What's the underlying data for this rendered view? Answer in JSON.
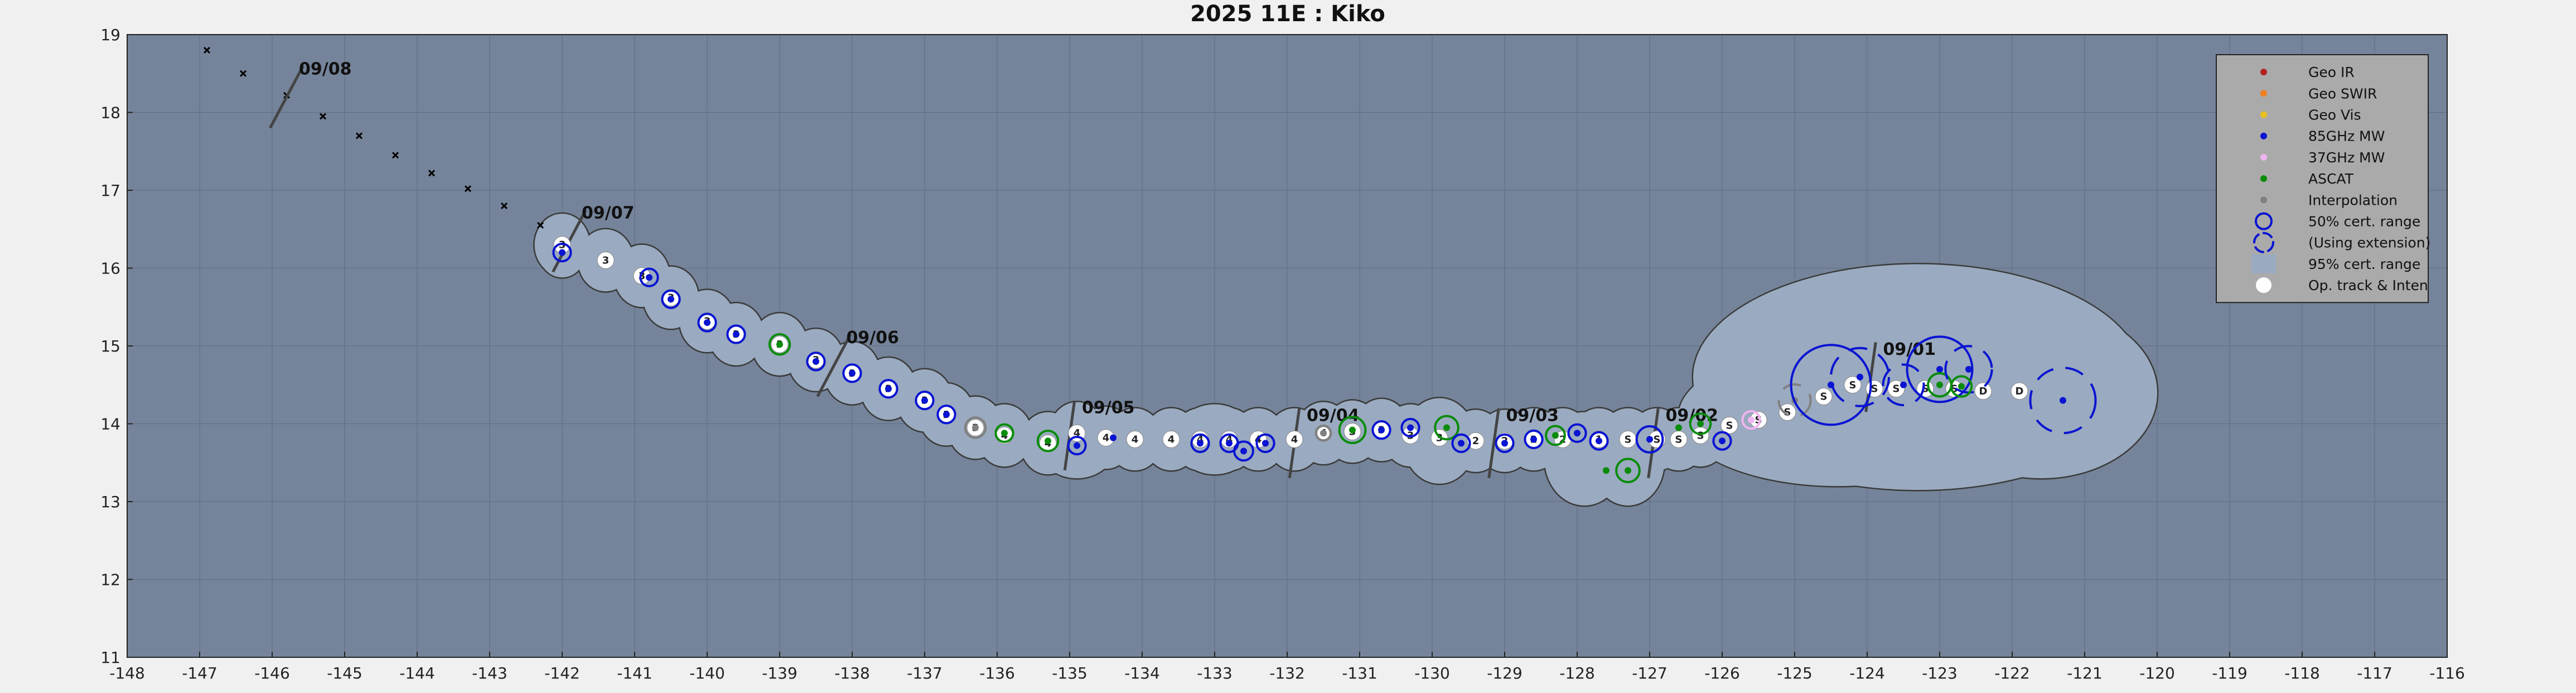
{
  "chart_data": {
    "type": "scatter",
    "title": "2025  11E :  Kiko",
    "xlim": [
      -148,
      -116
    ],
    "ylim": [
      11,
      19
    ],
    "xticks": [
      -148,
      -147,
      -146,
      -145,
      -144,
      -143,
      -142,
      -141,
      -140,
      -139,
      -138,
      -137,
      -136,
      -135,
      -134,
      -133,
      -132,
      -131,
      -130,
      -129,
      -128,
      -127,
      -126,
      -125,
      -124,
      -123,
      -122,
      -121,
      -120,
      -119,
      -118,
      -117,
      -116
    ],
    "yticks": [
      11,
      12,
      13,
      14,
      15,
      16,
      17,
      18,
      19
    ],
    "grid": true,
    "legend_position": "top-right",
    "colors": {
      "plot_bg": "#75849a",
      "envelope": "#9aaac0",
      "geo_ir": "#b22222",
      "geo_swir": "#f08020",
      "geo_vis": "#e8c020",
      "mw85": "#0a14d2",
      "mw37": "#f0b4f0",
      "ascat": "#0a8c0a",
      "interp": "#808080"
    },
    "legend": [
      {
        "label": "Geo IR",
        "kind": "dot",
        "color": "#b22222"
      },
      {
        "label": "Geo SWIR",
        "kind": "dot",
        "color": "#f08020"
      },
      {
        "label": "Geo Vis",
        "kind": "dot",
        "color": "#e8c020"
      },
      {
        "label": "85GHz MW",
        "kind": "dot",
        "color": "#0a14d2"
      },
      {
        "label": "37GHz MW",
        "kind": "dot",
        "color": "#f0b4f0"
      },
      {
        "label": "ASCAT",
        "kind": "dot",
        "color": "#0a8c0a"
      },
      {
        "label": "Interpolation",
        "kind": "dot",
        "color": "#808080"
      },
      {
        "label": "50% cert. range",
        "kind": "ring",
        "color": "#0a14d2"
      },
      {
        "label": "(Using extension)",
        "kind": "ring-dash",
        "color": "#0a14d2"
      },
      {
        "label": "95% cert. range",
        "kind": "patch",
        "color": "#9aaac0"
      },
      {
        "label": "Op. track & Inten",
        "kind": "white",
        "color": "#ffffff"
      }
    ],
    "date_markers": [
      {
        "label": "09/08",
        "lon": -145.8,
        "lat": 18.2
      },
      {
        "label": "09/07",
        "lon": -141.9,
        "lat": 16.35
      },
      {
        "label": "09/06",
        "lon": -138.25,
        "lat": 14.75
      },
      {
        "label": "09/05",
        "lon": -135.0,
        "lat": 13.85
      },
      {
        "label": "09/04",
        "lon": -131.9,
        "lat": 13.75
      },
      {
        "label": "09/03",
        "lon": -129.15,
        "lat": 13.75
      },
      {
        "label": "09/02",
        "lon": -126.95,
        "lat": 13.75
      },
      {
        "label": "09/01",
        "lon": -123.95,
        "lat": 14.6
      }
    ],
    "forecast_track": [
      {
        "lon": -146.9,
        "lat": 18.8
      },
      {
        "lon": -146.4,
        "lat": 18.5
      },
      {
        "lon": -145.8,
        "lat": 18.22
      },
      {
        "lon": -145.3,
        "lat": 17.95
      },
      {
        "lon": -144.8,
        "lat": 17.7
      },
      {
        "lon": -144.3,
        "lat": 17.45
      },
      {
        "lon": -143.8,
        "lat": 17.22
      },
      {
        "lon": -143.3,
        "lat": 17.02
      },
      {
        "lon": -142.8,
        "lat": 16.8
      },
      {
        "lon": -142.3,
        "lat": 16.55
      }
    ],
    "op_track": [
      {
        "lon": -142.0,
        "lat": 16.3,
        "int": "3"
      },
      {
        "lon": -141.4,
        "lat": 16.1,
        "int": "3"
      },
      {
        "lon": -140.9,
        "lat": 15.9,
        "int": "3"
      },
      {
        "lon": -140.5,
        "lat": 15.62,
        "int": "3"
      },
      {
        "lon": -140.0,
        "lat": 15.32,
        "int": "3"
      },
      {
        "lon": -139.6,
        "lat": 15.15,
        "int": "3"
      },
      {
        "lon": -139.0,
        "lat": 15.02,
        "int": "3"
      },
      {
        "lon": -138.5,
        "lat": 14.82,
        "int": "3"
      },
      {
        "lon": -138.0,
        "lat": 14.65,
        "int": "3"
      },
      {
        "lon": -137.5,
        "lat": 14.45,
        "int": "3"
      },
      {
        "lon": -137.0,
        "lat": 14.3,
        "int": "3"
      },
      {
        "lon": -136.7,
        "lat": 14.12,
        "int": "3"
      },
      {
        "lon": -136.3,
        "lat": 13.95,
        "int": "3"
      },
      {
        "lon": -135.9,
        "lat": 13.85,
        "int": "4"
      },
      {
        "lon": -135.3,
        "lat": 13.75,
        "int": "4"
      },
      {
        "lon": -134.9,
        "lat": 13.88,
        "int": "4"
      },
      {
        "lon": -134.5,
        "lat": 13.82,
        "int": "4"
      },
      {
        "lon": -134.1,
        "lat": 13.8,
        "int": "4"
      },
      {
        "lon": -133.6,
        "lat": 13.8,
        "int": "4"
      },
      {
        "lon": -133.2,
        "lat": 13.8,
        "int": "4"
      },
      {
        "lon": -132.8,
        "lat": 13.8,
        "int": "4"
      },
      {
        "lon": -132.4,
        "lat": 13.8,
        "int": "4"
      },
      {
        "lon": -131.9,
        "lat": 13.8,
        "int": "4"
      },
      {
        "lon": -131.5,
        "lat": 13.88,
        "int": "4"
      },
      {
        "lon": -131.1,
        "lat": 13.9,
        "int": "3"
      },
      {
        "lon": -130.7,
        "lat": 13.92,
        "int": "3"
      },
      {
        "lon": -130.3,
        "lat": 13.85,
        "int": "3"
      },
      {
        "lon": -129.9,
        "lat": 13.82,
        "int": "3"
      },
      {
        "lon": -129.4,
        "lat": 13.78,
        "int": "2"
      },
      {
        "lon": -129.0,
        "lat": 13.78,
        "int": "2"
      },
      {
        "lon": -128.6,
        "lat": 13.8,
        "int": "2"
      },
      {
        "lon": -128.2,
        "lat": 13.8,
        "int": "2"
      },
      {
        "lon": -127.7,
        "lat": 13.8,
        "int": "1"
      },
      {
        "lon": -127.3,
        "lat": 13.8,
        "int": "S"
      },
      {
        "lon": -126.9,
        "lat": 13.8,
        "int": "S"
      },
      {
        "lon": -126.6,
        "lat": 13.8,
        "int": "S"
      },
      {
        "lon": -126.3,
        "lat": 13.85,
        "int": "S"
      },
      {
        "lon": -125.9,
        "lat": 13.98,
        "int": "S"
      },
      {
        "lon": -125.5,
        "lat": 14.05,
        "int": "S"
      },
      {
        "lon": -125.1,
        "lat": 14.15,
        "int": "S"
      },
      {
        "lon": -124.6,
        "lat": 14.35,
        "int": "S"
      },
      {
        "lon": -124.2,
        "lat": 14.5,
        "int": "S"
      },
      {
        "lon": -123.9,
        "lat": 14.45,
        "int": "S"
      },
      {
        "lon": -123.6,
        "lat": 14.45,
        "int": "S"
      },
      {
        "lon": -123.2,
        "lat": 14.45,
        "int": "S"
      },
      {
        "lon": -122.8,
        "lat": 14.45,
        "int": "S"
      },
      {
        "lon": -122.4,
        "lat": 14.42,
        "int": "D"
      },
      {
        "lon": -121.9,
        "lat": 14.42,
        "int": "D"
      }
    ],
    "fixes": [
      {
        "type": "mw85",
        "lon": -142.0,
        "lat": 16.2,
        "r": 0.12
      },
      {
        "type": "mw85",
        "lon": -140.8,
        "lat": 15.88,
        "r": 0.12
      },
      {
        "type": "mw85",
        "lon": -140.5,
        "lat": 15.6,
        "r": 0.12
      },
      {
        "type": "mw85",
        "lon": -140.0,
        "lat": 15.3,
        "r": 0.12
      },
      {
        "type": "mw85",
        "lon": -139.6,
        "lat": 15.15,
        "r": 0.12
      },
      {
        "type": "ascat",
        "lon": -139.0,
        "lat": 15.02,
        "r": 0.14
      },
      {
        "type": "mw85",
        "lon": -138.5,
        "lat": 14.8,
        "r": 0.12
      },
      {
        "type": "mw85",
        "lon": -138.0,
        "lat": 14.65,
        "r": 0.12
      },
      {
        "type": "mw85",
        "lon": -137.5,
        "lat": 14.45,
        "r": 0.12
      },
      {
        "type": "mw85",
        "lon": -137.0,
        "lat": 14.3,
        "r": 0.12
      },
      {
        "type": "mw85",
        "lon": -136.7,
        "lat": 14.12,
        "r": 0.12
      },
      {
        "type": "interp",
        "lon": -136.3,
        "lat": 13.95,
        "r": 0.14
      },
      {
        "type": "ascat",
        "lon": -135.9,
        "lat": 13.88,
        "r": 0.12
      },
      {
        "type": "ascat",
        "lon": -135.3,
        "lat": 13.78,
        "r": 0.14
      },
      {
        "type": "mw85",
        "lon": -134.9,
        "lat": 13.72,
        "r": 0.12
      },
      {
        "type": "mw85",
        "lon": -134.4,
        "lat": 13.82,
        "r": 0.0
      },
      {
        "type": "mw85",
        "lon": -133.2,
        "lat": 13.75,
        "r": 0.12
      },
      {
        "type": "mw85",
        "lon": -132.8,
        "lat": 13.75,
        "r": 0.12
      },
      {
        "type": "mw85",
        "lon": -132.6,
        "lat": 13.65,
        "r": 0.13
      },
      {
        "type": "mw85",
        "lon": -132.3,
        "lat": 13.75,
        "r": 0.12
      },
      {
        "type": "interp",
        "lon": -131.5,
        "lat": 13.88,
        "r": 0.1
      },
      {
        "type": "ascat",
        "lon": -131.1,
        "lat": 13.92,
        "r": 0.18
      },
      {
        "type": "mw85",
        "lon": -130.7,
        "lat": 13.92,
        "r": 0.12
      },
      {
        "type": "mw85",
        "lon": -130.3,
        "lat": 13.95,
        "r": 0.12
      },
      {
        "type": "ascat",
        "lon": -129.8,
        "lat": 13.95,
        "r": 0.16
      },
      {
        "type": "mw85",
        "lon": -129.6,
        "lat": 13.75,
        "r": 0.12
      },
      {
        "type": "mw85",
        "lon": -129.0,
        "lat": 13.75,
        "r": 0.12
      },
      {
        "type": "mw85",
        "lon": -128.6,
        "lat": 13.8,
        "r": 0.12
      },
      {
        "type": "ascat",
        "lon": -128.3,
        "lat": 13.85,
        "r": 0.13
      },
      {
        "type": "mw85",
        "lon": -128.0,
        "lat": 13.88,
        "r": 0.12
      },
      {
        "type": "mw85",
        "lon": -127.7,
        "lat": 13.78,
        "r": 0.12
      },
      {
        "type": "mw85",
        "lon": -127.0,
        "lat": 13.8,
        "r": 0.18
      },
      {
        "type": "ascat",
        "lon": -127.6,
        "lat": 13.4,
        "r": 0.0
      },
      {
        "type": "ascat",
        "lon": -127.3,
        "lat": 13.4,
        "r": 0.16
      },
      {
        "type": "ascat",
        "lon": -126.6,
        "lat": 13.95,
        "r": 0.0
      },
      {
        "type": "ascat",
        "lon": -126.3,
        "lat": 14.0,
        "r": 0.14
      },
      {
        "type": "mw85",
        "lon": -126.0,
        "lat": 13.78,
        "r": 0.12
      },
      {
        "type": "mw37",
        "lon": -125.6,
        "lat": 14.05,
        "r": 0.12
      },
      {
        "type": "interp",
        "lon": -125.0,
        "lat": 14.3,
        "r": 0.22,
        "dash": true
      },
      {
        "type": "mw85",
        "lon": -124.5,
        "lat": 14.5,
        "r": 0.55
      },
      {
        "type": "mw85",
        "lon": -124.1,
        "lat": 14.6,
        "r": 0.4,
        "dash": true
      },
      {
        "type": "mw85",
        "lon": -123.5,
        "lat": 14.5,
        "r": 0.28,
        "dash": true
      },
      {
        "type": "mw85",
        "lon": -123.0,
        "lat": 14.7,
        "r": 0.45
      },
      {
        "type": "ascat",
        "lon": -123.0,
        "lat": 14.5,
        "r": 0.16
      },
      {
        "type": "mw85",
        "lon": -122.6,
        "lat": 14.7,
        "r": 0.32,
        "dash": true
      },
      {
        "type": "ascat",
        "lon": -122.7,
        "lat": 14.48,
        "r": 0.14
      },
      {
        "type": "mw85",
        "lon": -121.3,
        "lat": 14.3,
        "r": 0.45,
        "dash": true
      }
    ]
  }
}
